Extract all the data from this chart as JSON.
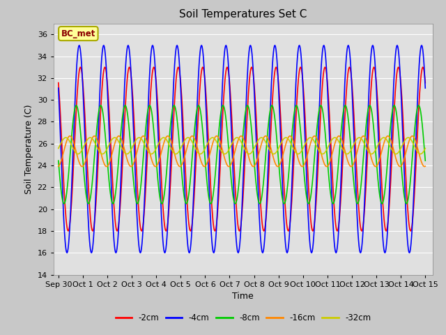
{
  "title": "Soil Temperatures Set C",
  "xlabel": "Time",
  "ylabel": "Soil Temperature (C)",
  "ylim": [
    14,
    37
  ],
  "yticks": [
    14,
    16,
    18,
    20,
    22,
    24,
    26,
    28,
    30,
    32,
    34,
    36
  ],
  "annotation": "BC_met",
  "series": [
    {
      "label": "-2cm",
      "color": "#ff0000",
      "amplitude": 7.5,
      "mean": 25.5,
      "phase": 0.65
    },
    {
      "label": "-4cm",
      "color": "#0000ff",
      "amplitude": 9.5,
      "mean": 25.5,
      "phase": 0.6
    },
    {
      "label": "-8cm",
      "color": "#00cc00",
      "amplitude": 4.5,
      "mean": 25.0,
      "phase": 0.48
    },
    {
      "label": "-16cm",
      "color": "#ff8800",
      "amplitude": 1.4,
      "mean": 25.3,
      "phase": 0.22
    },
    {
      "label": "-32cm",
      "color": "#cccc00",
      "amplitude": 0.75,
      "mean": 25.8,
      "phase": 0.05
    }
  ],
  "plot_bg_color": "#e0e0e0",
  "grid_color": "#ffffff",
  "xtick_labels": [
    "Sep 30",
    "Oct 1",
    "Oct 2",
    "Oct 3",
    "Oct 4",
    "Oct 5",
    "Oct 6",
    "Oct 7",
    "Oct 8",
    "Oct 9",
    "Oct 10",
    "Oct 11",
    "Oct 12",
    "Oct 13",
    "Oct 14",
    "Oct 15"
  ],
  "linewidth": 1.2,
  "figwidth": 6.4,
  "figheight": 4.8,
  "dpi": 100
}
